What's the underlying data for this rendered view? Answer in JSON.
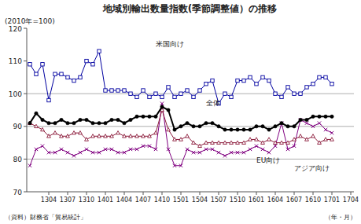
{
  "chart_data": {
    "type": "line",
    "title": "地域別輸出数量指数(季節調整値）の推移",
    "subtitle": "(2010年=100)",
    "x_label": "（年・月）",
    "source": "（資料）財務省「貿易統計」",
    "categories": [
      null,
      null,
      null,
      "1304",
      null,
      null,
      "1307",
      null,
      null,
      "1310",
      null,
      null,
      "1401",
      null,
      null,
      "1404",
      null,
      null,
      "1407",
      null,
      null,
      "1410",
      null,
      null,
      "1501",
      null,
      null,
      "1504",
      null,
      null,
      "1507",
      null,
      null,
      "1510",
      null,
      null,
      "1601",
      null,
      null,
      "1604",
      null,
      null,
      "1607",
      null,
      null,
      "1610",
      null,
      null,
      "1701",
      null,
      null,
      "1704"
    ],
    "series": [
      {
        "name": "米国向け",
        "color": "#0000A0",
        "marker": "square",
        "values": [
          109,
          106,
          109,
          98,
          106,
          106,
          105,
          104,
          105,
          110,
          109,
          113,
          101,
          101,
          101,
          101,
          100,
          99,
          101,
          99,
          100,
          99,
          102,
          99,
          100,
          101,
          99,
          101,
          103,
          104,
          97,
          100,
          99,
          104,
          104,
          105,
          103,
          105,
          104,
          100,
          99,
          102,
          100,
          100,
          102,
          103,
          105,
          105,
          103,
          null,
          null,
          null
        ]
      },
      {
        "name": "全体",
        "color": "#000000",
        "marker": "circle",
        "values": [
          91,
          94,
          92,
          91,
          91,
          92,
          91,
          91,
          92,
          92,
          91,
          91,
          91,
          92,
          92,
          91,
          92,
          93,
          93,
          93,
          93,
          96,
          95,
          89,
          90,
          91,
          90,
          90,
          91,
          91,
          90,
          89,
          89,
          89,
          89,
          89,
          90,
          90,
          89,
          90,
          91,
          90,
          90,
          92,
          92,
          93,
          93,
          93,
          93,
          null,
          null,
          null
        ]
      },
      {
        "name": "EU向け",
        "color": "#8B1A3A",
        "marker": "triangle",
        "values": [
          91,
          90,
          89,
          87,
          88,
          87,
          87,
          88,
          88,
          86,
          87,
          87,
          87,
          87,
          88,
          87,
          87,
          87,
          87,
          87,
          88,
          95,
          89,
          86,
          86,
          87,
          85,
          84,
          85,
          85,
          85,
          85,
          85,
          85,
          85,
          86,
          86,
          85,
          86,
          85,
          85,
          85,
          86,
          87,
          86,
          87,
          85,
          86,
          86,
          null,
          null,
          null
        ]
      },
      {
        "name": "アジア向け",
        "color": "#800080",
        "marker": "x",
        "values": [
          78,
          83,
          84,
          82,
          82,
          83,
          82,
          81,
          82,
          83,
          82,
          82,
          83,
          83,
          82,
          82,
          83,
          83,
          84,
          84,
          83,
          97,
          83,
          78,
          78,
          83,
          82,
          82,
          83,
          83,
          82,
          81,
          82,
          82,
          82,
          83,
          84,
          83,
          82,
          84,
          91,
          83,
          84,
          92,
          91,
          90,
          91,
          89,
          88,
          null,
          null,
          null
        ]
      }
    ],
    "ylim": [
      70,
      120
    ],
    "yticks": [
      70,
      80,
      90,
      100,
      110,
      120
    ],
    "hlines": [
      80,
      90,
      100
    ]
  }
}
